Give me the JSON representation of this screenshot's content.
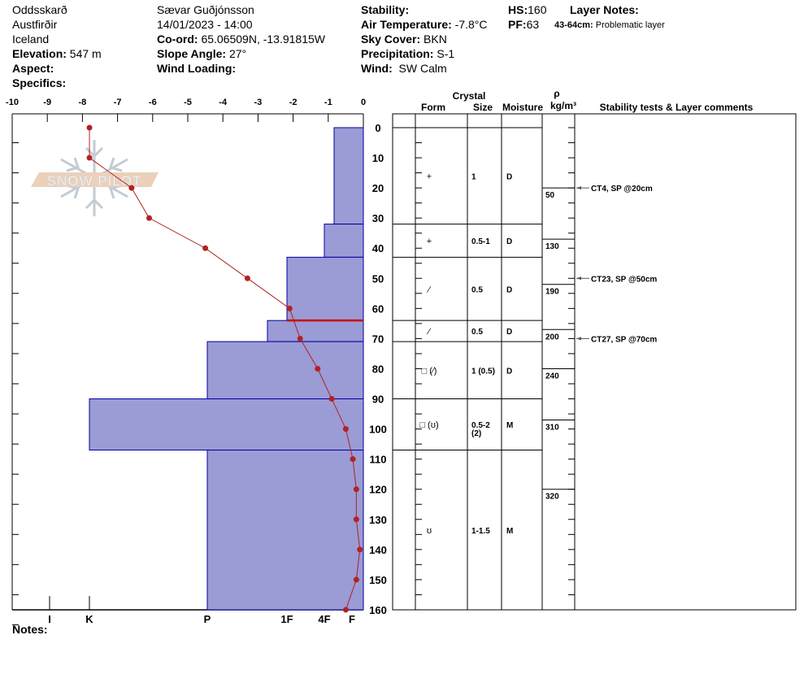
{
  "header": {
    "location": "Oddsskarð",
    "region": "Austfirðir",
    "country": "Iceland",
    "elevation_label": "Elevation:",
    "elevation": "547 m",
    "aspect_label": "Aspect:",
    "specifics_label": "Specifics:",
    "observer": "Sævar Guðjónsson",
    "datetime": "14/01/2023 - 14:00",
    "coord_label": "Co-ord:",
    "coord": "65.06509N, -13.91815W",
    "slope_label": "Slope Angle:",
    "slope": "27°",
    "wind_loading_label": "Wind Loading:",
    "stability_label": "Stability:",
    "air_temp_label": "Air Temperature:",
    "air_temp": "-7.8°C",
    "sky_label": "Sky Cover:",
    "sky": "BKN",
    "precip_label": "Precipitation:",
    "precip": "S-1",
    "wind_label": "Wind:",
    "wind": "SW Calm",
    "hs_label": "HS:",
    "hs": "160",
    "pf_label": "PF:",
    "pf": "63",
    "layer_notes_label": "Layer Notes:",
    "layer_note_range": "43-64cm:",
    "layer_note_text": "Problematic layer"
  },
  "notes_label": "Notes:",
  "logo_text": "SNOW PILOT",
  "table_headers": {
    "crystal": "Crystal",
    "form": "Form",
    "size": "Size",
    "moisture": "Moisture",
    "rho": "ρ",
    "density_unit": "kg/m³",
    "comments": "Stability tests & Layer comments"
  },
  "colors": {
    "hardness_fill": "#9b9bd6",
    "hardness_stroke": "#0000a0",
    "temperature": "#b22222",
    "problem_layer": "#cc0000"
  },
  "chart_data": {
    "type": "snow-profile",
    "temperature_axis": {
      "ticks": [
        "-10",
        "-9",
        "-8",
        "-7",
        "-6",
        "-5",
        "-4",
        "-3",
        "-2",
        "-1",
        "0"
      ],
      "range": [
        -10,
        0
      ]
    },
    "depth_axis": {
      "ticks": [
        "0",
        "10",
        "20",
        "30",
        "40",
        "50",
        "60",
        "70",
        "80",
        "90",
        "100",
        "110",
        "120",
        "130",
        "140",
        "150",
        "160"
      ],
      "range": [
        0,
        160
      ]
    },
    "hardness_axis": {
      "ticks": [
        "I",
        "K",
        "P",
        "1F",
        "4F",
        "F"
      ]
    },
    "temperature_profile": [
      {
        "depth": 0,
        "temp": -7.8
      },
      {
        "depth": 10,
        "temp": -7.8
      },
      {
        "depth": 20,
        "temp": -6.6
      },
      {
        "depth": 30,
        "temp": -6.1
      },
      {
        "depth": 40,
        "temp": -4.5
      },
      {
        "depth": 50,
        "temp": -3.3
      },
      {
        "depth": 60,
        "temp": -2.1
      },
      {
        "depth": 70,
        "temp": -1.8
      },
      {
        "depth": 80,
        "temp": -1.3
      },
      {
        "depth": 90,
        "temp": -0.9
      },
      {
        "depth": 100,
        "temp": -0.5
      },
      {
        "depth": 110,
        "temp": -0.3
      },
      {
        "depth": 120,
        "temp": -0.2
      },
      {
        "depth": 130,
        "temp": -0.2
      },
      {
        "depth": 140,
        "temp": -0.1
      },
      {
        "depth": 150,
        "temp": -0.2
      },
      {
        "depth": 160,
        "temp": -0.5
      }
    ],
    "layers": [
      {
        "top": 0,
        "bottom": 32,
        "hardness": "4F+",
        "form": "+",
        "size": "1",
        "moisture": "D"
      },
      {
        "top": 32,
        "bottom": 43,
        "hardness": "4F",
        "form": "+",
        "size": "0.5-1",
        "moisture": "D"
      },
      {
        "top": 43,
        "bottom": 64,
        "hardness": "1F",
        "form": "⁄",
        "size": "0.5",
        "moisture": "D"
      },
      {
        "top": 64,
        "bottom": 71,
        "hardness": "1F-",
        "form": "⁄",
        "size": "0.5",
        "moisture": "D"
      },
      {
        "top": 71,
        "bottom": 90,
        "hardness": "P",
        "form": "□ (⁄)",
        "size": "1 (0.5)",
        "moisture": "D"
      },
      {
        "top": 90,
        "bottom": 107,
        "hardness": "K",
        "form": "□ (ʊ)",
        "size": "0.5-2",
        "size2": "(2)",
        "moisture": "M"
      },
      {
        "top": 107,
        "bottom": 160,
        "hardness": "P",
        "form": "ʊ",
        "size": "1-1.5",
        "moisture": "M"
      }
    ],
    "problem_layer_depth": 64,
    "density": [
      {
        "depth": 20,
        "value": "50"
      },
      {
        "depth": 37,
        "value": "130"
      },
      {
        "depth": 52,
        "value": "190"
      },
      {
        "depth": 67,
        "value": "200"
      },
      {
        "depth": 80,
        "value": "240"
      },
      {
        "depth": 97,
        "value": "310"
      },
      {
        "depth": 120,
        "value": "320"
      }
    ],
    "stability_tests": [
      {
        "depth": 20,
        "text": "CT4, SP @20cm"
      },
      {
        "depth": 50,
        "text": "CT23, SP @50cm"
      },
      {
        "depth": 70,
        "text": "CT27, SP @70cm"
      }
    ]
  }
}
